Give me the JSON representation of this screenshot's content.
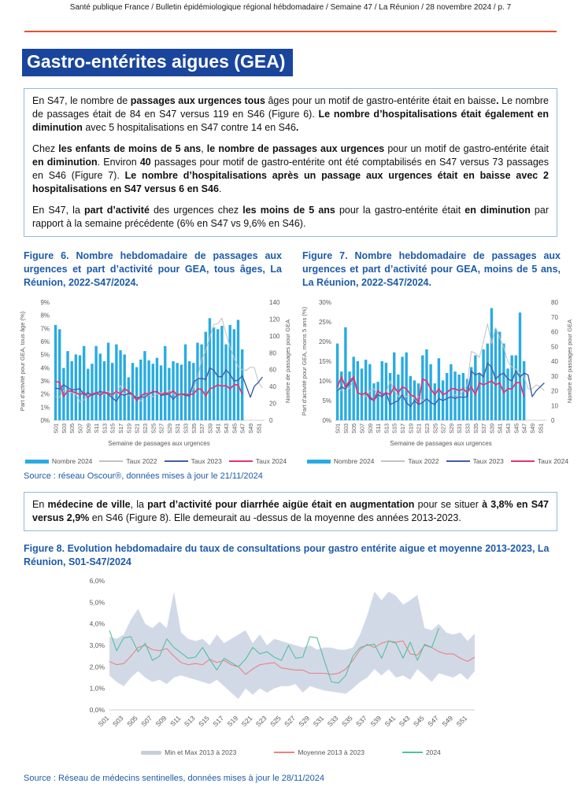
{
  "header": {
    "text": "Santé publique France / Bulletin épidémiologique régional hébdomadaire / Semaine 47 / La Réunion / 28 novembre 2024 / p. 7"
  },
  "title": "Gastro-entérites aigues (GEA)",
  "colors": {
    "accent_blue": "#1A459C",
    "caption_blue": "#1D5BA9",
    "rule_orange": "#E8512E",
    "box_border": "#93B9E0",
    "bar_blue": "#29ABE2",
    "gray_2022": "#C2C2C2",
    "blue_2023": "#3E5FA9",
    "pink_2024": "#E6336E",
    "band": "#D2D9E6",
    "band_swatch": "#C7CEDB",
    "mean_red": "#E88383",
    "green_2024": "#52C0A0",
    "axis_text": "#595959"
  },
  "summary_box": {
    "paragraphs": [
      [
        {
          "t": "En S47, le nombre de ",
          "b": false
        },
        {
          "t": "passages aux urgences tous",
          "b": true
        },
        {
          "t": " âges pour un motif de gastro-entérite était en baisse",
          "b": false
        },
        {
          "t": ".",
          "b": true
        },
        {
          "t": " Le nombre de passages était de 84 en S47 versus 119 en S46 (Figure 6). ",
          "b": false
        },
        {
          "t": "Le nombre d’hospitalisations était également en diminution",
          "b": true
        },
        {
          "t": " avec 5 hospitalisations en S47 contre 14 en S46",
          "b": false
        },
        {
          "t": ".",
          "b": true
        }
      ],
      [
        {
          "t": "Chez ",
          "b": false
        },
        {
          "t": "les enfants de moins de 5 ans",
          "b": true
        },
        {
          "t": ", ",
          "b": false
        },
        {
          "t": "le nombre de passages aux urgences",
          "b": true
        },
        {
          "t": " pour un motif de gastro-entérite était ",
          "b": false
        },
        {
          "t": "en diminution",
          "b": true
        },
        {
          "t": ". Environ ",
          "b": false
        },
        {
          "t": "40",
          "b": true
        },
        {
          "t": " passages pour motif de gastro-entérite ont été comptabilisés en S47 versus 73 passages en S46 (Figure 7). ",
          "b": false
        },
        {
          "t": "Le nombre d’hospitalisations après un passage aux urgences était en baisse avec 2 hospitalisations en S47 versus 6 en S46",
          "b": true
        },
        {
          "t": ".",
          "b": false
        }
      ],
      [
        {
          "t": "En S47, la ",
          "b": false
        },
        {
          "t": "part d’activité",
          "b": true
        },
        {
          "t": " des urgences chez ",
          "b": false
        },
        {
          "t": "les moins de 5 ans",
          "b": true
        },
        {
          "t": " pour la gastro-entérite était ",
          "b": false
        },
        {
          "t": "en diminution",
          "b": true
        },
        {
          "t": " par rapport à la semaine précédente (6% en S47 vs 9,6% en S46).",
          "b": false
        }
      ]
    ]
  },
  "ville_box": {
    "paragraphs": [
      [
        {
          "t": "En ",
          "b": false
        },
        {
          "t": "médecine de ville",
          "b": true
        },
        {
          "t": ", la ",
          "b": false
        },
        {
          "t": "part d’activité pour diarrhée aigüe était en augmentation",
          "b": true
        },
        {
          "t": " pour se situer ",
          "b": false
        },
        {
          "t": "à 3,8% en S47 versus 2,9%",
          "b": true
        },
        {
          "t": " en S46 (Figure 8). Elle demeurait au -dessus de la moyenne des années 2013-2023.",
          "b": false
        }
      ]
    ]
  },
  "week_ticks": [
    "S01",
    "S03",
    "S05",
    "S07",
    "S09",
    "S11",
    "S13",
    "S15",
    "S17",
    "S19",
    "S21",
    "S23",
    "S25",
    "S27",
    "S29",
    "S31",
    "S33",
    "S35",
    "S37",
    "S39",
    "S41",
    "S43",
    "S45",
    "S47",
    "S49",
    "S51"
  ],
  "n_weeks": 52,
  "figures": {
    "source_urgences": "Source : réseau Oscour®, données mises à jour le 21/11/2024",
    "source_sentinelles": "Source : Réseau de médecins sentinelles, données mises à jour le 28/11/2024",
    "fig6": {
      "caption": "Figure 6. Nombre hebdomadaire de passages aux urgences et part d’activité pour GEA, tous âges, La Réunion, 2022-S47/2024.",
      "chart_data": {
        "type": "bar+line",
        "x_label": "Semaine de passages aux urgences",
        "y_left_label": "Part d'activité pour GEA, tous âge (%)",
        "y_right_label": "Nombre de passages pour GEA",
        "y_left_ticks": [
          "0%",
          "1%",
          "2%",
          "3%",
          "4%",
          "5%",
          "6%",
          "7%",
          "8%",
          "9%"
        ],
        "y_left_max": 9,
        "y_right_ticks": [
          "0",
          "20",
          "40",
          "60",
          "80",
          "100",
          "120",
          "140"
        ],
        "y_right_max": 140,
        "legend_position": "bottom",
        "series": [
          {
            "name": "Nombre 2024",
            "type": "bar",
            "axis": "right",
            "color_key": "bar_blue",
            "values": [
              113,
              108,
              62,
              82,
              70,
              78,
              77,
              88,
              61,
              67,
              88,
              79,
              70,
              92,
              68,
              90,
              83,
              78,
              51,
              68,
              63,
              72,
              82,
              71,
              67,
              74,
              65,
              88,
              62,
              70,
              68,
              66,
              90,
              70,
              68,
              92,
              90,
              105,
              121,
              110,
              108,
              112,
              90,
              113,
              108,
              119,
              84
            ]
          },
          {
            "name": "Taux 2022",
            "type": "line",
            "axis": "left",
            "color_key": "gray_2022",
            "values": [
              1.8,
              1.75,
              2.3,
              2.2,
              2.1,
              2.0,
              1.4,
              1.55,
              1.9,
              2.0,
              2.1,
              1.95,
              2.0,
              2.2,
              1.9,
              2.1,
              2.65,
              2.0,
              1.9,
              1.85,
              1.8,
              1.45,
              1.85,
              1.9,
              1.8,
              2.0,
              2.1,
              1.9,
              2.3,
              2.0,
              1.9,
              1.95,
              1.9,
              2.0,
              2.4,
              3.3,
              4.6,
              5.3,
              6.3,
              7.3,
              7.35,
              7.8,
              6.6,
              5.6,
              4.75,
              4.1,
              3.85,
              3.8,
              4.05,
              4.0,
              2.9,
              2.45
            ]
          },
          {
            "name": "Taux 2023",
            "type": "line",
            "axis": "left",
            "color_key": "blue_2023",
            "values": [
              2.45,
              2.4,
              2.7,
              2.5,
              2.3,
              2.35,
              2.4,
              1.95,
              2.1,
              1.9,
              2.05,
              2.2,
              2.1,
              2.0,
              1.7,
              1.45,
              2.0,
              1.9,
              2.05,
              1.95,
              1.7,
              1.8,
              1.75,
              2.0,
              2.15,
              2.2,
              1.9,
              1.95,
              2.0,
              1.6,
              1.95,
              2.0,
              1.9,
              1.85,
              2.9,
              3.15,
              3.2,
              3.1,
              4.0,
              3.8,
              3.35,
              3.3,
              3.85,
              3.5,
              3.0,
              3.05,
              3.4,
              2.6,
              1.75,
              2.6,
              2.9,
              3.3
            ]
          },
          {
            "name": "Taux 2024",
            "type": "line",
            "axis": "left",
            "color_key": "pink_2024",
            "values": [
              2.95,
              2.9,
              1.8,
              2.25,
              2.2,
              2.1,
              1.95,
              2.1,
              1.75,
              2.0,
              2.1,
              1.9,
              2.15,
              2.05,
              1.95,
              2.2,
              2.0,
              2.4,
              2.2,
              1.95,
              1.5,
              1.85,
              2.05,
              2.0,
              2.2,
              2.15,
              1.95,
              2.1,
              2.0,
              2.25,
              1.9,
              2.0,
              2.0,
              1.95,
              2.0,
              2.4,
              2.35,
              1.85,
              2.4,
              2.5,
              2.7,
              2.6,
              2.65,
              2.4,
              2.7,
              2.7,
              2.0
            ]
          }
        ]
      }
    },
    "fig7": {
      "caption": "Figure 7. Nombre hebdomadaire de passages aux urgences et part d’activité pour GEA, moins de 5 ans, La Réunion, 2022-S47/2024.",
      "chart_data": {
        "type": "bar+line",
        "x_label": "Semaine de passages aux urgences",
        "y_left_label": "Part d'activité pour GEA, moins 5 ans (%)",
        "y_right_label": "Nombre de passages pour GEA",
        "y_left_ticks": [
          "0%",
          "5%",
          "10%",
          "15%",
          "20%",
          "25%",
          "30%"
        ],
        "y_left_max": 30,
        "y_right_ticks": [
          "0",
          "10",
          "20",
          "30",
          "40",
          "50",
          "60",
          "70",
          "80"
        ],
        "y_right_max": 80,
        "legend_position": "bottom",
        "series": [
          {
            "name": "Nombre 2024",
            "type": "bar",
            "axis": "right",
            "color_key": "bar_blue",
            "values": [
              52,
              33,
              63,
              33,
              43,
              40,
              35,
              41,
              38,
              25,
              26,
              40,
              39,
              32,
              46,
              31,
              43,
              46,
              30,
              27,
              25,
              44,
              48,
              38,
              25,
              42,
              27,
              32,
              38,
              33,
              31,
              32,
              28,
              36,
              44,
              32,
              48,
              52,
              76,
              62,
              60,
              52,
              35,
              44,
              44,
              73,
              40
            ]
          },
          {
            "name": "Taux 2022",
            "type": "line",
            "axis": "left",
            "color_key": "gray_2022",
            "values": [
              8,
              7.5,
              8.5,
              8,
              10.5,
              7,
              6.5,
              6,
              7.5,
              8,
              6.5,
              6,
              7,
              10,
              7.5,
              6,
              6.5,
              6,
              6.5,
              5.5,
              6,
              5,
              5.5,
              4.5,
              4,
              5.5,
              5,
              5.5,
              6,
              6.5,
              6,
              7.5,
              9,
              17.5,
              17,
              16,
              20,
              24.5,
              19.5,
              23.5,
              21,
              18.5,
              15,
              13.5,
              13,
              12,
              11,
              8,
              8,
              9,
              8.5,
              7.5
            ]
          },
          {
            "name": "Taux 2023",
            "type": "line",
            "axis": "left",
            "color_key": "blue_2023",
            "values": [
              7.5,
              8.5,
              8,
              9.5,
              10.5,
              7,
              6.5,
              7,
              5.5,
              5,
              6.5,
              6,
              7,
              4,
              4.5,
              5,
              6.5,
              4.5,
              3.5,
              5,
              4,
              4.5,
              5.5,
              4.5,
              4,
              5.5,
              5,
              5.5,
              6,
              5.5,
              6,
              5.8,
              6,
              12.5,
              11.5,
              12,
              11,
              14.5,
              13.5,
              10.5,
              11.5,
              12,
              10.5,
              10,
              12.5,
              11,
              12,
              11.5,
              6,
              7.5,
              8.5,
              9.5
            ]
          },
          {
            "name": "Taux 2024",
            "type": "line",
            "axis": "left",
            "color_key": "pink_2024",
            "values": [
              8.5,
              11,
              8.5,
              10,
              11,
              7,
              6.5,
              7,
              6,
              5,
              7.5,
              6.5,
              7,
              6.5,
              8.5,
              7,
              8.5,
              8,
              6.5,
              6,
              4.5,
              10.5,
              10,
              8,
              6.5,
              8,
              6.5,
              7,
              8,
              8,
              7.5,
              8,
              7,
              8.5,
              6.5,
              9.5,
              9,
              9.5,
              10,
              9,
              9.5,
              7,
              8,
              8,
              9.5,
              9.6,
              6
            ]
          }
        ]
      }
    },
    "fig8": {
      "caption": "Figure 8. Evolution hebdomadaire du taux de consultations pour gastro entérite aigue et moyenne 2013-2023, La Réunion, S01-S47/2024",
      "chart_data": {
        "type": "area+line",
        "y_ticks": [
          "0,0%",
          "1,0%",
          "2,0%",
          "3,0%",
          "4,0%",
          "5,0%",
          "6,0%"
        ],
        "y_max": 6,
        "legend_position": "bottom",
        "band": {
          "name": "Min et Max 2013 à 2023",
          "max": [
            3.4,
            3.3,
            3.5,
            4.2,
            4.7,
            4.0,
            3.8,
            4.1,
            3.8,
            5.5,
            3.6,
            3.3,
            3.2,
            3.3,
            3.0,
            3.5,
            3.1,
            3.3,
            3.5,
            3.7,
            3.1,
            3.5,
            3.0,
            3.3,
            3.2,
            3.1,
            3.0,
            2.9,
            3.0,
            2.8,
            2.9,
            2.9,
            2.8,
            2.8,
            2.9,
            3.5,
            4.4,
            5.5,
            5.1,
            5.5,
            5.3,
            4.9,
            5.1,
            5.35,
            3.8,
            3.7,
            4.0,
            3.6,
            3.5,
            3.6,
            3.2,
            3.55
          ],
          "min": [
            1.6,
            1.3,
            1.1,
            1.5,
            1.8,
            1.5,
            1.3,
            1.4,
            1.2,
            1.5,
            1.6,
            1.5,
            1.4,
            1.3,
            1.2,
            1.4,
            1.1,
            0.8,
            0.5,
            1.0,
            0.7,
            1.0,
            0.8,
            1.0,
            1.1,
            1.1,
            1.2,
            0.8,
            1.1,
            1.0,
            0.9,
            0.85,
            0.8,
            0.75,
            1.0,
            1.3,
            1.5,
            1.9,
            1.6,
            1.9,
            1.5,
            1.6,
            1.4,
            1.9,
            1.6,
            1.3,
            1.7,
            1.6,
            1.5,
            1.7,
            1.4,
            1.8
          ]
        },
        "series": [
          {
            "name": "Moyenne 2013 à 2023",
            "color_key": "mean_red",
            "values": [
              2.25,
              2.1,
              2.15,
              2.5,
              2.9,
              3.0,
              2.8,
              2.75,
              2.85,
              2.5,
              2.2,
              2.1,
              2.15,
              2.1,
              2.35,
              2.2,
              2.3,
              2.1,
              2.0,
              1.65,
              1.9,
              2.1,
              2.15,
              2.2,
              1.95,
              1.9,
              1.85,
              1.85,
              1.7,
              1.7,
              1.7,
              1.65,
              1.7,
              1.9,
              2.3,
              2.8,
              3.05,
              2.9,
              3.1,
              3.2,
              3.15,
              3.2,
              2.6,
              2.55,
              3.0,
              2.9,
              2.7,
              2.6,
              2.6,
              2.4,
              2.25,
              2.45
            ]
          },
          {
            "name": "2024",
            "color_key": "green_2024",
            "values": [
              3.7,
              2.75,
              3.35,
              3.4,
              2.7,
              3.1,
              2.3,
              2.5,
              3.3,
              2.9,
              2.65,
              2.4,
              2.45,
              2.9,
              2.35,
              1.85,
              2.4,
              2.2,
              2.0,
              2.35,
              2.9,
              2.6,
              2.7,
              2.45,
              2.3,
              3.0,
              2.4,
              2.45,
              3.4,
              3.35,
              2.3,
              1.3,
              1.25,
              1.6,
              2.5,
              2.9,
              3.0,
              3.05,
              2.4,
              3.2,
              3.1,
              2.4,
              3.15,
              2.3,
              3.05,
              2.9,
              3.8
            ]
          }
        ]
      }
    }
  }
}
